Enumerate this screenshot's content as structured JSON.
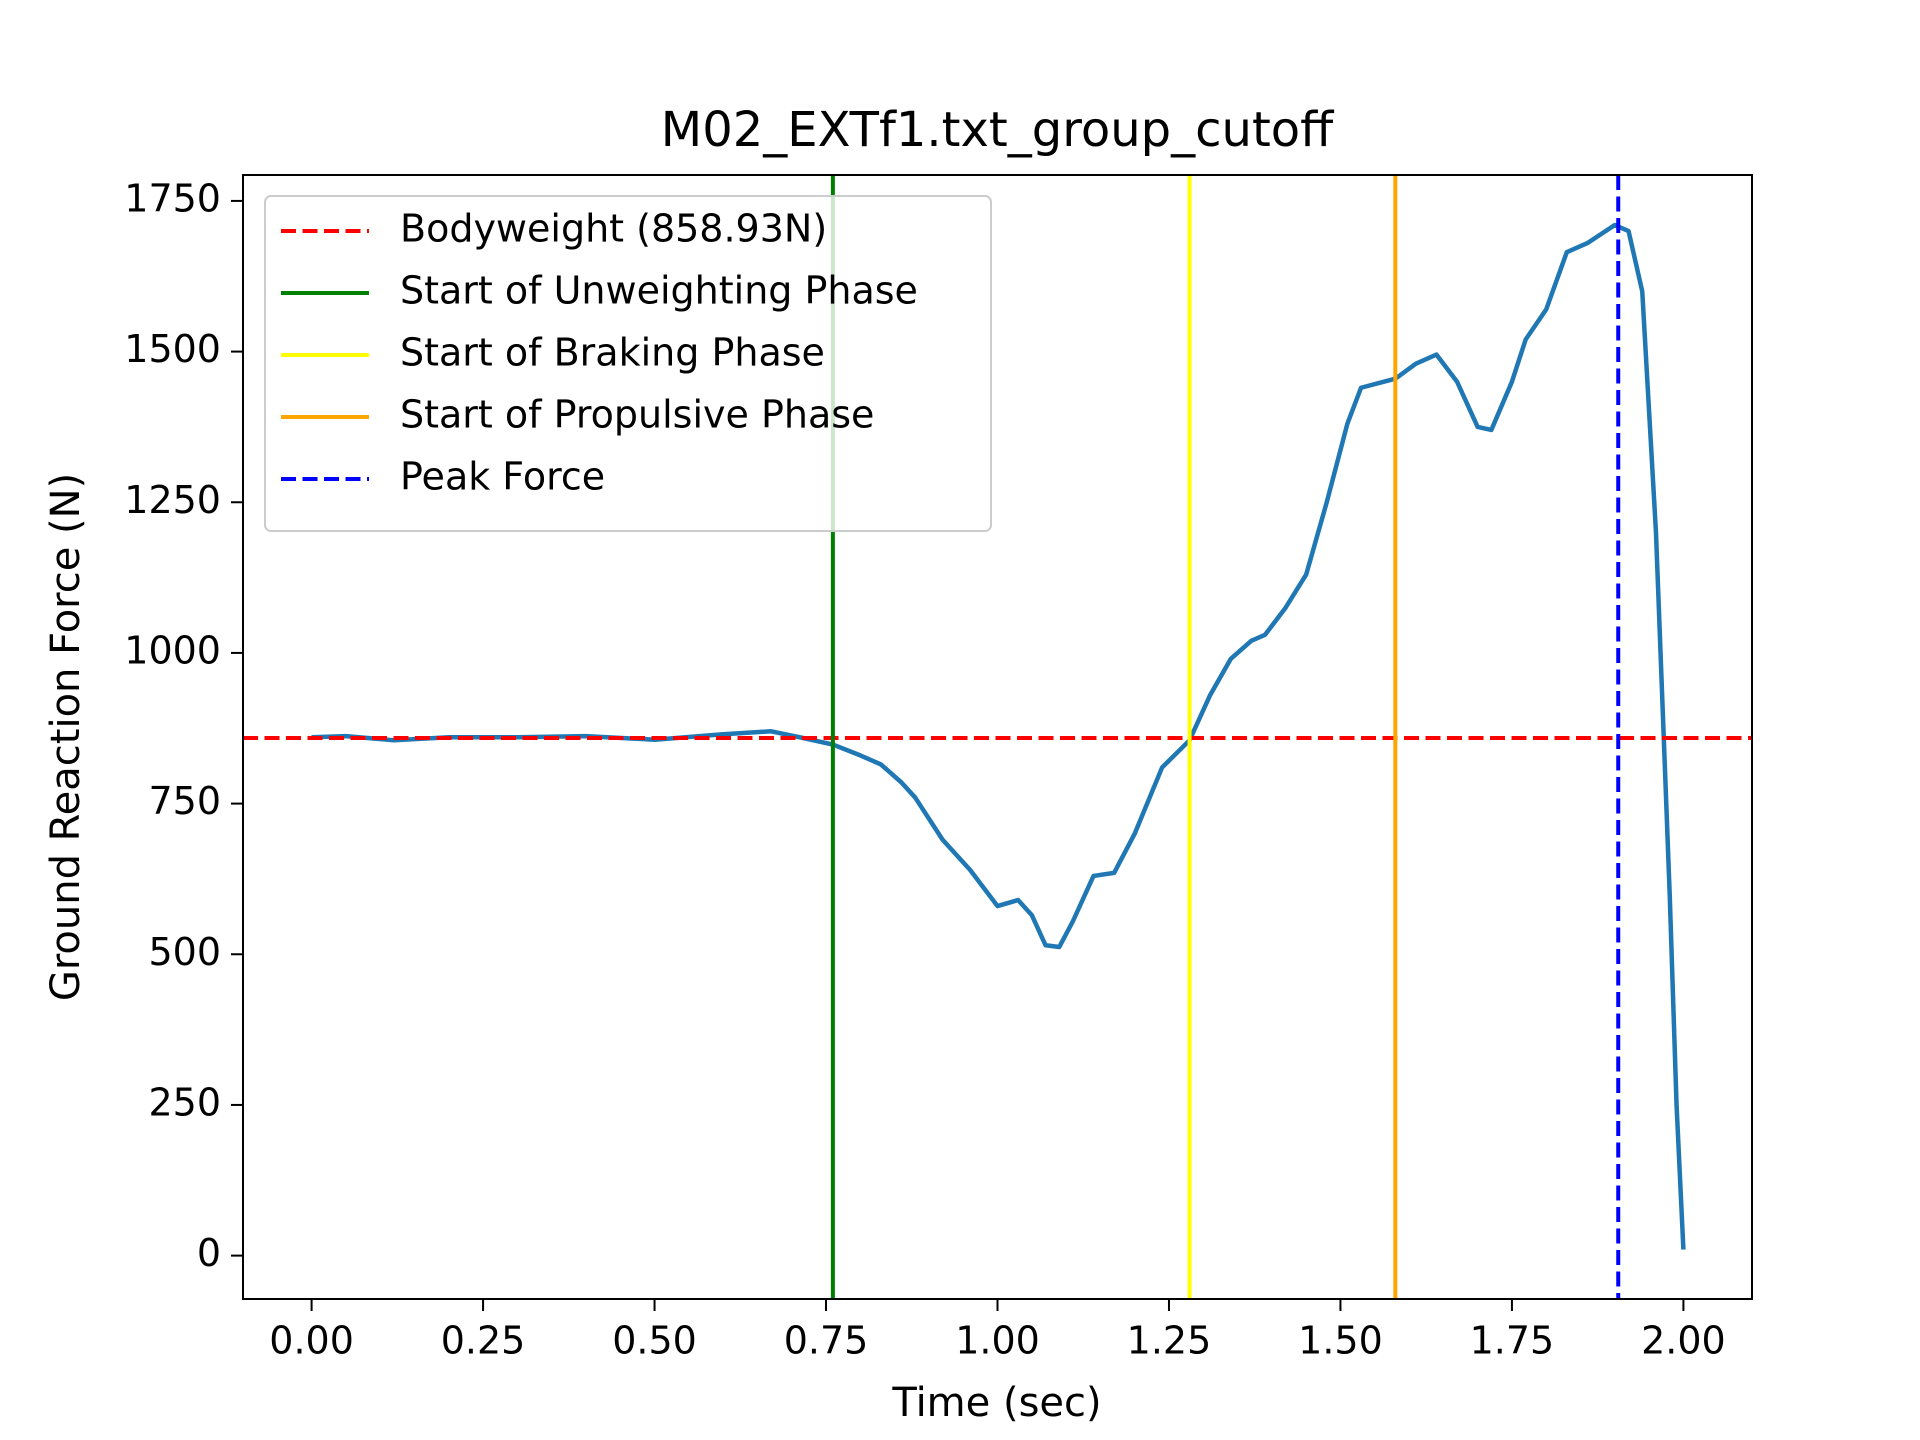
{
  "chart_data": {
    "type": "line",
    "title": "M02_EXTf1.txt_group_cutoff",
    "x_label": "Time (sec)",
    "y_label": "Ground Reaction Force (N)",
    "xlim": [
      -0.1,
      2.1
    ],
    "ylim": [
      -72,
      1793
    ],
    "xticks": [
      {
        "value": 0,
        "label": "0.00"
      },
      {
        "value": 0.25,
        "label": "0.25"
      },
      {
        "value": 0.5,
        "label": "0.50"
      },
      {
        "value": 0.75,
        "label": "0.75"
      },
      {
        "value": 1,
        "label": "1.00"
      },
      {
        "value": 1.25,
        "label": "1.25"
      },
      {
        "value": 1.5,
        "label": "1.50"
      },
      {
        "value": 1.75,
        "label": "1.75"
      },
      {
        "value": 2,
        "label": "2.00"
      }
    ],
    "yticks": [
      0,
      250,
      500,
      750,
      1000,
      1250,
      1500,
      1750
    ],
    "legend": "upper left",
    "series": [
      {
        "color": "#1f77b4",
        "x": [
          0,
          0.05,
          0.12,
          0.2,
          0.3,
          0.4,
          0.5,
          0.6,
          0.67,
          0.72,
          0.76,
          0.8,
          0.83,
          0.86,
          0.88,
          0.92,
          0.96,
          1.0,
          1.03,
          1.05,
          1.07,
          1.09,
          1.11,
          1.14,
          1.17,
          1.2,
          1.24,
          1.28,
          1.31,
          1.34,
          1.37,
          1.39,
          1.42,
          1.45,
          1.48,
          1.51,
          1.53,
          1.58,
          1.61,
          1.64,
          1.67,
          1.7,
          1.72,
          1.75,
          1.77,
          1.8,
          1.83,
          1.86,
          1.9,
          1.92,
          1.94,
          1.96,
          1.98,
          1.99,
          2.0
        ],
        "values": [
          860,
          862,
          855,
          860,
          860,
          862,
          856,
          865,
          870,
          858,
          848,
          830,
          815,
          785,
          760,
          690,
          640,
          580,
          590,
          565,
          515,
          512,
          555,
          630,
          635,
          700,
          810,
          855,
          930,
          990,
          1020,
          1030,
          1075,
          1130,
          1250,
          1380,
          1440,
          1455,
          1480,
          1495,
          1450,
          1375,
          1370,
          1450,
          1520,
          1570,
          1665,
          1680,
          1710,
          1700,
          1600,
          1200,
          600,
          250,
          10
        ]
      }
    ],
    "hlines": [
      {
        "name": "Bodyweight (858.93N)",
        "value": 858.93,
        "color": "#ff0000",
        "dashed": true
      }
    ],
    "vlines": [
      {
        "name": "Start of Unweighting Phase",
        "value": 0.76,
        "color": "#008000",
        "dashed": false
      },
      {
        "name": "Start of Braking Phase",
        "value": 1.28,
        "color": "#ffff00",
        "dashed": false
      },
      {
        "name": "Start of Propulsive Phase",
        "value": 1.58,
        "color": "#ffa500",
        "dashed": false
      },
      {
        "name": "Peak Force",
        "value": 1.905,
        "color": "#0000ff",
        "dashed": true
      }
    ]
  }
}
